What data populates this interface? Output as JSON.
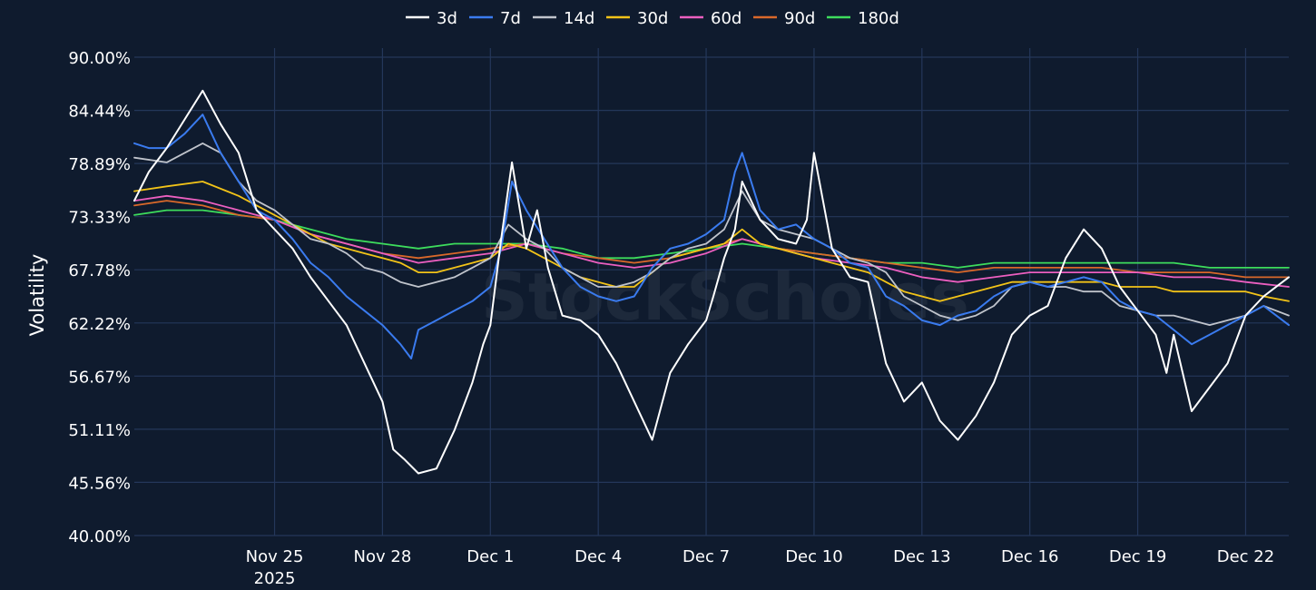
{
  "watermark": "StockScholes",
  "colors": {
    "background": "#0f1b2e",
    "grid": "#24375a",
    "3d": "#ffffff",
    "7d": "#3a7bef",
    "14d": "#c0c4cc",
    "30d": "#f2c318",
    "60d": "#ec5fc0",
    "90d": "#d9682a",
    "180d": "#3ddc5c"
  },
  "chart_data": {
    "type": "line",
    "title": "",
    "xlabel": "",
    "ylabel": "Volatility",
    "ylim": [
      40.0,
      90.0
    ],
    "y_ticks": [
      "40.00%",
      "45.56%",
      "51.11%",
      "56.67%",
      "62.22%",
      "67.78%",
      "73.33%",
      "78.89%",
      "84.44%",
      "90.00%"
    ],
    "y_tick_values": [
      40.0,
      45.56,
      51.11,
      56.67,
      62.22,
      67.78,
      73.33,
      78.89,
      84.44,
      90.0
    ],
    "xlim": [
      -3.9,
      28.2
    ],
    "x_unit": "days since Nov 25, 2025",
    "x_ticks": [
      {
        "x": 0,
        "label": "Nov 25",
        "sublabel": "2025"
      },
      {
        "x": 3,
        "label": "Nov 28"
      },
      {
        "x": 6,
        "label": "Dec 1"
      },
      {
        "x": 9,
        "label": "Dec 4"
      },
      {
        "x": 12,
        "label": "Dec 7"
      },
      {
        "x": 15,
        "label": "Dec 10"
      },
      {
        "x": 18,
        "label": "Dec 13"
      },
      {
        "x": 21,
        "label": "Dec 16"
      },
      {
        "x": 24,
        "label": "Dec 19"
      },
      {
        "x": 27,
        "label": "Dec 22"
      }
    ],
    "legend_position": "top-center",
    "series": [
      {
        "name": "3d",
        "x": [
          -3.9,
          -3.5,
          -3.0,
          -2.5,
          -2.0,
          -1.5,
          -1.0,
          -0.5,
          0,
          0.5,
          1.0,
          1.5,
          2.0,
          2.5,
          3.0,
          3.3,
          3.6,
          4.0,
          4.5,
          5.0,
          5.5,
          5.8,
          6.0,
          6.3,
          6.6,
          7.0,
          7.3,
          7.6,
          8.0,
          8.5,
          9.0,
          9.5,
          10.0,
          10.5,
          11.0,
          11.5,
          12.0,
          12.2,
          12.5,
          12.8,
          13.0,
          13.5,
          14.0,
          14.5,
          14.8,
          15.0,
          15.5,
          16.0,
          16.5,
          17.0,
          17.5,
          18.0,
          18.5,
          19.0,
          19.5,
          20.0,
          20.5,
          21.0,
          21.5,
          22.0,
          22.5,
          23.0,
          23.5,
          24.0,
          24.5,
          24.8,
          25.0,
          25.5,
          26.0,
          26.5,
          27.0,
          27.5,
          28.2
        ],
        "values": [
          75.0,
          78.0,
          80.5,
          83.5,
          86.5,
          83.0,
          80.0,
          74.0,
          72.0,
          70.0,
          67.0,
          64.5,
          62.0,
          58.0,
          54.0,
          49.0,
          48.0,
          46.5,
          47.0,
          51.0,
          56.0,
          60.0,
          62.0,
          71.0,
          79.0,
          70.0,
          74.0,
          68.0,
          63.0,
          62.5,
          61.0,
          58.0,
          54.0,
          50.0,
          57.0,
          60.0,
          62.5,
          65.0,
          69.0,
          72.0,
          77.0,
          73.0,
          71.0,
          70.5,
          73.0,
          80.0,
          70.0,
          67.0,
          66.5,
          58.0,
          54.0,
          56.0,
          52.0,
          50.0,
          52.5,
          56.0,
          61.0,
          63.0,
          64.0,
          69.0,
          72.0,
          70.0,
          66.0,
          63.5,
          61.0,
          57.0,
          61.0,
          53.0,
          55.5,
          58.0,
          63.0,
          65.0,
          67.0
        ]
      },
      {
        "name": "7d",
        "x": [
          -3.9,
          -3.5,
          -3.0,
          -2.5,
          -2.0,
          -1.5,
          -1.0,
          -0.5,
          0,
          0.5,
          1.0,
          1.5,
          2.0,
          2.5,
          3.0,
          3.5,
          3.8,
          4.0,
          4.5,
          5.0,
          5.5,
          6.0,
          6.3,
          6.6,
          7.0,
          7.5,
          8.0,
          8.5,
          9.0,
          9.5,
          10.0,
          10.5,
          11.0,
          11.5,
          12.0,
          12.5,
          12.8,
          13.0,
          13.5,
          14.0,
          14.5,
          15.0,
          15.5,
          16.0,
          16.5,
          17.0,
          17.5,
          18.0,
          18.5,
          19.0,
          19.5,
          20.0,
          20.5,
          21.0,
          21.5,
          22.0,
          22.5,
          23.0,
          23.5,
          24.0,
          24.5,
          25.0,
          25.5,
          26.0,
          26.5,
          27.0,
          27.5,
          28.2
        ],
        "values": [
          81.0,
          80.5,
          80.5,
          82.0,
          84.0,
          80.0,
          77.0,
          74.0,
          73.0,
          71.0,
          68.5,
          67.0,
          65.0,
          63.5,
          62.0,
          60.0,
          58.5,
          61.5,
          62.5,
          63.5,
          64.5,
          66.0,
          70.0,
          77.0,
          74.0,
          71.0,
          68.0,
          66.0,
          65.0,
          64.5,
          65.0,
          68.0,
          70.0,
          70.5,
          71.5,
          73.0,
          78.0,
          80.0,
          74.0,
          72.0,
          72.5,
          71.0,
          70.0,
          68.5,
          68.0,
          65.0,
          64.0,
          62.5,
          62.0,
          63.0,
          63.5,
          65.0,
          66.0,
          66.5,
          66.0,
          66.5,
          67.0,
          66.5,
          64.5,
          63.5,
          63.0,
          61.5,
          60.0,
          61.0,
          62.0,
          63.0,
          64.0,
          62.0
        ]
      },
      {
        "name": "14d",
        "x": [
          -3.9,
          -3.0,
          -2.0,
          -1.5,
          -1.0,
          -0.5,
          0,
          0.5,
          1.0,
          1.5,
          2.0,
          2.5,
          3.0,
          3.5,
          4.0,
          4.5,
          5.0,
          5.5,
          6.0,
          6.5,
          7.0,
          7.5,
          8.0,
          8.5,
          9.0,
          9.5,
          10.0,
          10.5,
          11.0,
          11.5,
          12.0,
          12.5,
          13.0,
          13.5,
          14.0,
          14.5,
          15.0,
          15.5,
          16.0,
          16.5,
          17.0,
          17.5,
          18.0,
          18.5,
          19.0,
          19.5,
          20.0,
          20.5,
          21.0,
          21.5,
          22.0,
          22.5,
          23.0,
          23.5,
          24.0,
          24.5,
          25.0,
          25.5,
          26.0,
          26.5,
          27.0,
          27.5,
          28.2
        ],
        "values": [
          79.5,
          79.0,
          81.0,
          80.0,
          77.0,
          75.0,
          74.0,
          72.5,
          71.0,
          70.5,
          69.5,
          68.0,
          67.5,
          66.5,
          66.0,
          66.5,
          67.0,
          68.0,
          69.0,
          72.5,
          71.0,
          70.0,
          68.0,
          67.0,
          66.0,
          66.0,
          66.5,
          67.5,
          69.0,
          70.0,
          70.5,
          72.0,
          76.0,
          73.0,
          72.0,
          71.5,
          71.0,
          70.0,
          69.0,
          68.5,
          67.5,
          65.0,
          64.0,
          63.0,
          62.5,
          63.0,
          64.0,
          66.0,
          66.5,
          66.0,
          66.0,
          65.5,
          65.5,
          64.0,
          63.5,
          63.0,
          63.0,
          62.5,
          62.0,
          62.5,
          63.0,
          64.0,
          63.0
        ]
      },
      {
        "name": "30d",
        "x": [
          -3.9,
          -3.0,
          -2.0,
          -1.0,
          0,
          0.5,
          1.0,
          1.5,
          2.0,
          2.5,
          3.0,
          3.5,
          4.0,
          4.5,
          5.0,
          5.5,
          6.0,
          6.5,
          7.0,
          7.5,
          8.0,
          8.5,
          9.0,
          9.5,
          10.0,
          10.5,
          11.0,
          11.5,
          12.0,
          12.5,
          13.0,
          13.5,
          14.0,
          14.5,
          15.0,
          15.5,
          16.0,
          16.5,
          17.0,
          17.5,
          18.0,
          18.5,
          19.0,
          19.5,
          20.0,
          20.5,
          21.0,
          21.5,
          22.0,
          22.5,
          23.0,
          23.5,
          24.0,
          24.5,
          25.0,
          25.5,
          26.0,
          26.5,
          27.0,
          27.5,
          28.2
        ],
        "values": [
          76.0,
          76.5,
          77.0,
          75.5,
          73.5,
          72.5,
          71.5,
          70.5,
          70.0,
          69.5,
          69.0,
          68.5,
          67.5,
          67.5,
          68.0,
          68.5,
          69.0,
          70.5,
          70.0,
          69.0,
          68.0,
          67.0,
          66.5,
          66.0,
          66.0,
          67.5,
          69.0,
          69.5,
          70.0,
          70.5,
          72.0,
          70.5,
          70.0,
          69.5,
          69.0,
          68.5,
          68.0,
          67.5,
          66.5,
          65.5,
          65.0,
          64.5,
          65.0,
          65.5,
          66.0,
          66.5,
          66.5,
          66.5,
          66.5,
          66.5,
          66.5,
          66.0,
          66.0,
          66.0,
          65.5,
          65.5,
          65.5,
          65.5,
          65.5,
          65.0,
          64.5
        ]
      },
      {
        "name": "60d",
        "x": [
          -3.9,
          -3.0,
          -2.0,
          -1.0,
          0,
          1.0,
          2.0,
          3.0,
          4.0,
          5.0,
          6.0,
          7.0,
          8.0,
          9.0,
          10.0,
          11.0,
          12.0,
          13.0,
          14.0,
          15.0,
          16.0,
          17.0,
          18.0,
          19.0,
          20.0,
          21.0,
          22.0,
          23.0,
          24.0,
          25.0,
          26.0,
          27.0,
          28.2
        ],
        "values": [
          75.0,
          75.5,
          75.0,
          74.0,
          73.0,
          71.5,
          70.5,
          69.5,
          68.5,
          69.0,
          69.5,
          70.5,
          69.5,
          68.5,
          68.0,
          68.5,
          69.5,
          71.0,
          70.0,
          69.0,
          68.5,
          68.0,
          67.0,
          66.5,
          67.0,
          67.5,
          67.5,
          67.5,
          67.5,
          67.0,
          67.0,
          66.5,
          66.0
        ]
      },
      {
        "name": "90d",
        "x": [
          -3.9,
          -3.0,
          -2.0,
          -1.0,
          0,
          1.0,
          2.0,
          3.0,
          4.0,
          5.0,
          6.0,
          7.0,
          8.0,
          9.0,
          10.0,
          11.0,
          12.0,
          13.0,
          14.0,
          15.0,
          16.0,
          17.0,
          18.0,
          19.0,
          20.0,
          21.0,
          22.0,
          23.0,
          24.0,
          25.0,
          26.0,
          27.0,
          28.2
        ],
        "values": [
          74.5,
          75.0,
          74.5,
          73.5,
          73.0,
          71.5,
          70.5,
          69.5,
          69.0,
          69.5,
          70.0,
          70.5,
          69.5,
          69.0,
          68.5,
          69.0,
          70.0,
          71.0,
          70.0,
          69.5,
          69.0,
          68.5,
          68.0,
          67.5,
          68.0,
          68.0,
          68.0,
          68.0,
          67.5,
          67.5,
          67.5,
          67.0,
          67.0
        ]
      },
      {
        "name": "180d",
        "x": [
          -3.9,
          -3.0,
          -2.0,
          -1.0,
          0,
          1.0,
          2.0,
          3.0,
          4.0,
          5.0,
          6.0,
          7.0,
          8.0,
          9.0,
          10.0,
          11.0,
          12.0,
          13.0,
          14.0,
          15.0,
          16.0,
          17.0,
          18.0,
          19.0,
          20.0,
          21.0,
          22.0,
          23.0,
          24.0,
          25.0,
          26.0,
          27.0,
          28.2
        ],
        "values": [
          73.5,
          74.0,
          74.0,
          73.5,
          73.0,
          72.0,
          71.0,
          70.5,
          70.0,
          70.5,
          70.5,
          70.5,
          70.0,
          69.0,
          69.0,
          69.5,
          70.0,
          70.5,
          70.0,
          69.5,
          69.0,
          68.5,
          68.5,
          68.0,
          68.5,
          68.5,
          68.5,
          68.5,
          68.5,
          68.5,
          68.0,
          68.0,
          68.0
        ]
      }
    ]
  }
}
